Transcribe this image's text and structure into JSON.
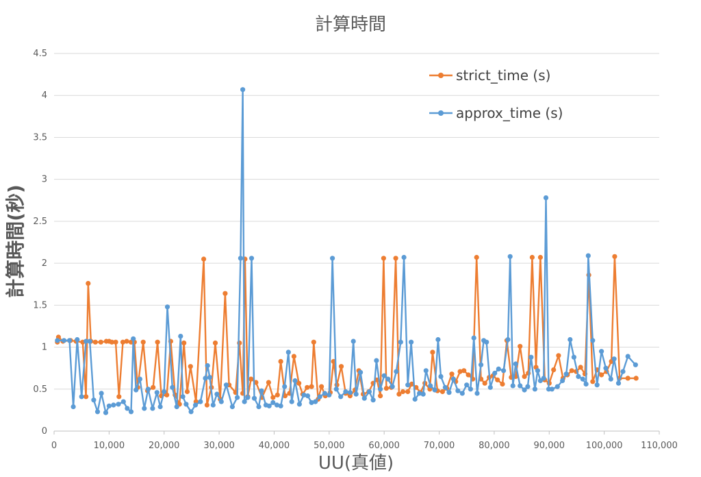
{
  "chart_data": {
    "type": "line",
    "title": "計算時間",
    "xlabel": "UU(真値)",
    "ylabel": "計算時間(秒)",
    "xlim": [
      0,
      110000
    ],
    "ylim": [
      0,
      4.5
    ],
    "x_ticks": [
      "0",
      "10,000",
      "20,000",
      "30,000",
      "40,000",
      "50,000",
      "60,000",
      "70,000",
      "80,000",
      "90,000",
      "100,000",
      "110,000"
    ],
    "y_ticks": [
      "0",
      "0.5",
      "1",
      "1.5",
      "2",
      "2.5",
      "3",
      "3.5",
      "4",
      "4.5"
    ],
    "grid": "horizontal",
    "legend_position": "top-right",
    "series": [
      {
        "name": "strict_time (s)",
        "color": "#ED7D31",
        "points": [
          [
            600,
            1.06
          ],
          [
            800,
            1.12
          ],
          [
            1600,
            1.07
          ],
          [
            3000,
            1.08
          ],
          [
            4000,
            1.07
          ],
          [
            5200,
            1.06
          ],
          [
            5800,
            0.41
          ],
          [
            6200,
            1.76
          ],
          [
            6700,
            1.07
          ],
          [
            7500,
            1.06
          ],
          [
            8500,
            1.06
          ],
          [
            9500,
            1.07
          ],
          [
            10000,
            1.07
          ],
          [
            10500,
            1.06
          ],
          [
            11200,
            1.06
          ],
          [
            11800,
            0.41
          ],
          [
            12500,
            1.06
          ],
          [
            13200,
            1.07
          ],
          [
            14000,
            1.06
          ],
          [
            14600,
            1.06
          ],
          [
            15200,
            0.52
          ],
          [
            16200,
            1.06
          ],
          [
            17000,
            0.48
          ],
          [
            18000,
            0.52
          ],
          [
            18800,
            1.06
          ],
          [
            19500,
            0.42
          ],
          [
            20500,
            0.43
          ],
          [
            21200,
            1.07
          ],
          [
            22000,
            0.43
          ],
          [
            22800,
            0.32
          ],
          [
            23600,
            1.05
          ],
          [
            24200,
            0.47
          ],
          [
            24800,
            0.77
          ],
          [
            25800,
            0.35
          ],
          [
            27200,
            2.05
          ],
          [
            27800,
            0.31
          ],
          [
            28600,
            0.52
          ],
          [
            29300,
            1.05
          ],
          [
            30200,
            0.38
          ],
          [
            31100,
            1.64
          ],
          [
            31800,
            0.55
          ],
          [
            33000,
            0.46
          ],
          [
            33700,
            1.05
          ],
          [
            34300,
            0.45
          ],
          [
            34700,
            2.05
          ],
          [
            35200,
            0.41
          ],
          [
            35800,
            0.62
          ],
          [
            36700,
            0.58
          ],
          [
            37800,
            0.4
          ],
          [
            39000,
            0.58
          ],
          [
            39800,
            0.4
          ],
          [
            40600,
            0.43
          ],
          [
            41200,
            0.83
          ],
          [
            42000,
            0.42
          ],
          [
            42800,
            0.45
          ],
          [
            43600,
            0.89
          ],
          [
            44500,
            0.57
          ],
          [
            45200,
            0.44
          ],
          [
            46000,
            0.52
          ],
          [
            46800,
            0.53
          ],
          [
            47200,
            1.06
          ],
          [
            48000,
            0.38
          ],
          [
            48600,
            0.53
          ],
          [
            49300,
            0.42
          ],
          [
            50200,
            0.46
          ],
          [
            50800,
            0.83
          ],
          [
            51400,
            0.55
          ],
          [
            52200,
            0.77
          ],
          [
            53000,
            0.45
          ],
          [
            53800,
            0.42
          ],
          [
            54700,
            0.49
          ],
          [
            55400,
            0.72
          ],
          [
            56200,
            0.44
          ],
          [
            57200,
            0.47
          ],
          [
            58000,
            0.57
          ],
          [
            58700,
            0.61
          ],
          [
            59300,
            0.42
          ],
          [
            59900,
            2.06
          ],
          [
            60400,
            0.51
          ],
          [
            61300,
            0.52
          ],
          [
            62100,
            2.06
          ],
          [
            62700,
            0.44
          ],
          [
            63400,
            0.47
          ],
          [
            64300,
            0.47
          ],
          [
            65000,
            0.56
          ],
          [
            65800,
            0.52
          ],
          [
            66600,
            0.46
          ],
          [
            67400,
            0.57
          ],
          [
            68300,
            0.5
          ],
          [
            68800,
            0.94
          ],
          [
            69700,
            0.48
          ],
          [
            70600,
            0.47
          ],
          [
            71400,
            0.51
          ],
          [
            72300,
            0.68
          ],
          [
            73000,
            0.59
          ],
          [
            73800,
            0.71
          ],
          [
            74500,
            0.72
          ],
          [
            75300,
            0.67
          ],
          [
            76100,
            0.62
          ],
          [
            76800,
            2.07
          ],
          [
            77600,
            0.62
          ],
          [
            78300,
            0.57
          ],
          [
            79100,
            0.64
          ],
          [
            79800,
            0.66
          ],
          [
            80600,
            0.61
          ],
          [
            81500,
            0.56
          ],
          [
            82300,
            1.08
          ],
          [
            83100,
            0.64
          ],
          [
            83900,
            0.65
          ],
          [
            84700,
            1.01
          ],
          [
            85500,
            0.65
          ],
          [
            86200,
            0.69
          ],
          [
            86900,
            2.07
          ],
          [
            87600,
            0.76
          ],
          [
            88400,
            2.07
          ],
          [
            89200,
            0.61
          ],
          [
            90000,
            0.57
          ],
          [
            90800,
            0.73
          ],
          [
            91700,
            0.9
          ],
          [
            92500,
            0.63
          ],
          [
            93300,
            0.67
          ],
          [
            94100,
            0.72
          ],
          [
            94900,
            0.71
          ],
          [
            95700,
            0.76
          ],
          [
            96500,
            0.68
          ],
          [
            97200,
            1.86
          ],
          [
            97900,
            0.59
          ],
          [
            98700,
            0.73
          ],
          [
            99500,
            0.67
          ],
          [
            100400,
            0.71
          ],
          [
            101300,
            0.83
          ],
          [
            101900,
            2.08
          ],
          [
            102800,
            0.63
          ],
          [
            104300,
            0.63
          ],
          [
            105800,
            0.63
          ]
        ]
      },
      {
        "name": "approx_time (s)",
        "color": "#5B9BD5",
        "points": [
          [
            600,
            1.08
          ],
          [
            1800,
            1.08
          ],
          [
            2800,
            1.08
          ],
          [
            3500,
            0.29
          ],
          [
            4200,
            1.09
          ],
          [
            5000,
            0.41
          ],
          [
            5800,
            1.07
          ],
          [
            6500,
            1.07
          ],
          [
            7200,
            0.37
          ],
          [
            7900,
            0.23
          ],
          [
            8600,
            0.45
          ],
          [
            9400,
            0.22
          ],
          [
            10000,
            0.3
          ],
          [
            10800,
            0.31
          ],
          [
            11700,
            0.32
          ],
          [
            12600,
            0.35
          ],
          [
            13300,
            0.27
          ],
          [
            14000,
            0.23
          ],
          [
            14400,
            1.1
          ],
          [
            14900,
            0.49
          ],
          [
            15600,
            0.62
          ],
          [
            16400,
            0.27
          ],
          [
            17100,
            0.5
          ],
          [
            17900,
            0.27
          ],
          [
            18700,
            0.46
          ],
          [
            19300,
            0.29
          ],
          [
            20000,
            0.47
          ],
          [
            20600,
            1.48
          ],
          [
            21500,
            0.52
          ],
          [
            22300,
            0.29
          ],
          [
            23000,
            1.13
          ],
          [
            23400,
            0.41
          ],
          [
            24000,
            0.32
          ],
          [
            24900,
            0.23
          ],
          [
            25700,
            0.31
          ],
          [
            26600,
            0.35
          ],
          [
            27500,
            0.63
          ],
          [
            27900,
            0.78
          ],
          [
            28300,
            0.64
          ],
          [
            28900,
            0.31
          ],
          [
            29600,
            0.44
          ],
          [
            30400,
            0.35
          ],
          [
            31300,
            0.55
          ],
          [
            32400,
            0.29
          ],
          [
            33300,
            0.4
          ],
          [
            33900,
            2.06
          ],
          [
            34300,
            4.07
          ],
          [
            34600,
            0.35
          ],
          [
            35200,
            0.4
          ],
          [
            35900,
            2.06
          ],
          [
            36400,
            0.39
          ],
          [
            37200,
            0.29
          ],
          [
            37700,
            0.48
          ],
          [
            38500,
            0.31
          ],
          [
            39100,
            0.3
          ],
          [
            39800,
            0.34
          ],
          [
            40500,
            0.31
          ],
          [
            41200,
            0.3
          ],
          [
            41900,
            0.53
          ],
          [
            42600,
            0.94
          ],
          [
            43200,
            0.35
          ],
          [
            43800,
            0.6
          ],
          [
            44600,
            0.32
          ],
          [
            45400,
            0.43
          ],
          [
            46100,
            0.42
          ],
          [
            46800,
            0.34
          ],
          [
            47500,
            0.35
          ],
          [
            48300,
            0.41
          ],
          [
            49200,
            0.45
          ],
          [
            50000,
            0.43
          ],
          [
            50600,
            2.06
          ],
          [
            51300,
            0.5
          ],
          [
            52100,
            0.41
          ],
          [
            53000,
            0.47
          ],
          [
            53800,
            0.46
          ],
          [
            54400,
            1.07
          ],
          [
            54900,
            0.44
          ],
          [
            55700,
            0.7
          ],
          [
            56400,
            0.39
          ],
          [
            57300,
            0.47
          ],
          [
            58000,
            0.37
          ],
          [
            58600,
            0.84
          ],
          [
            59300,
            0.5
          ],
          [
            60000,
            0.66
          ],
          [
            60700,
            0.62
          ],
          [
            61500,
            0.53
          ],
          [
            62200,
            0.71
          ],
          [
            63000,
            1.06
          ],
          [
            63600,
            2.07
          ],
          [
            64300,
            0.55
          ],
          [
            64900,
            1.06
          ],
          [
            65600,
            0.38
          ],
          [
            66400,
            0.45
          ],
          [
            67100,
            0.44
          ],
          [
            67600,
            0.72
          ],
          [
            68400,
            0.54
          ],
          [
            69200,
            0.49
          ],
          [
            69800,
            1.09
          ],
          [
            70300,
            0.65
          ],
          [
            71100,
            0.52
          ],
          [
            71800,
            0.46
          ],
          [
            72600,
            0.62
          ],
          [
            73400,
            0.48
          ],
          [
            74200,
            0.45
          ],
          [
            75000,
            0.55
          ],
          [
            75700,
            0.5
          ],
          [
            76300,
            1.11
          ],
          [
            76900,
            0.45
          ],
          [
            77600,
            0.79
          ],
          [
            78100,
            1.08
          ],
          [
            78600,
            1.06
          ],
          [
            79300,
            0.52
          ],
          [
            80100,
            0.69
          ],
          [
            80800,
            0.74
          ],
          [
            81700,
            0.72
          ],
          [
            82500,
            1.09
          ],
          [
            82900,
            2.08
          ],
          [
            83400,
            0.54
          ],
          [
            83900,
            0.8
          ],
          [
            84700,
            0.54
          ],
          [
            85500,
            0.49
          ],
          [
            86100,
            0.53
          ],
          [
            86700,
            0.88
          ],
          [
            87400,
            0.5
          ],
          [
            87900,
            0.72
          ],
          [
            88400,
            0.6
          ],
          [
            89000,
            0.63
          ],
          [
            89400,
            2.78
          ],
          [
            89900,
            0.5
          ],
          [
            90500,
            0.5
          ],
          [
            91500,
            0.53
          ],
          [
            92400,
            0.6
          ],
          [
            93100,
            0.68
          ],
          [
            93800,
            1.09
          ],
          [
            94500,
            0.88
          ],
          [
            95300,
            0.65
          ],
          [
            96100,
            0.62
          ],
          [
            96700,
            0.56
          ],
          [
            97100,
            2.09
          ],
          [
            97900,
            1.08
          ],
          [
            98700,
            0.55
          ],
          [
            99500,
            0.95
          ],
          [
            100300,
            0.75
          ],
          [
            101200,
            0.62
          ],
          [
            101800,
            0.86
          ],
          [
            102600,
            0.57
          ],
          [
            103400,
            0.71
          ],
          [
            104300,
            0.89
          ],
          [
            105700,
            0.79
          ]
        ]
      }
    ]
  }
}
